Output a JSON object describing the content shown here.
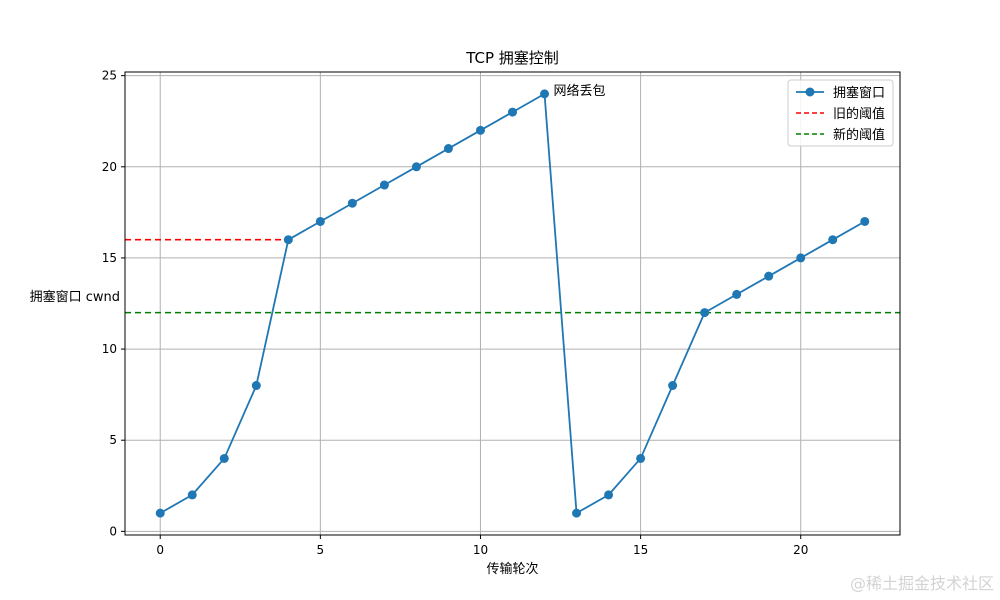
{
  "chart_data": {
    "type": "line",
    "title": "TCP 拥塞控制",
    "xlabel": "传输轮次",
    "ylabel": "拥塞窗口 cwnd",
    "xlim": [
      -1.1,
      23.1
    ],
    "ylim": [
      -0.2,
      25.2
    ],
    "x_ticks": [
      0,
      5,
      10,
      15,
      20
    ],
    "y_ticks": [
      0,
      5,
      10,
      15,
      20,
      25
    ],
    "grid": true,
    "legend_position": "top-right",
    "series": [
      {
        "name": "拥塞窗口",
        "style": "line-marker",
        "color": "#1f77b4",
        "x": [
          0,
          1,
          2,
          3,
          4,
          5,
          6,
          7,
          8,
          9,
          10,
          11,
          12,
          13,
          14,
          15,
          16,
          17,
          18,
          19,
          20,
          21,
          22
        ],
        "y": [
          1,
          2,
          4,
          8,
          16,
          17,
          18,
          19,
          20,
          21,
          22,
          23,
          24,
          1,
          2,
          4,
          8,
          12,
          13,
          14,
          15,
          16,
          17
        ]
      }
    ],
    "reference_lines": [
      {
        "name": "旧的阈值",
        "color": "#ff0000",
        "style": "dashed",
        "y": 16,
        "x_range": [
          -1.1,
          4
        ]
      },
      {
        "name": "新的阈值",
        "color": "#008000",
        "style": "dashed",
        "y": 12,
        "x_range": [
          -1.1,
          23.1
        ]
      }
    ],
    "annotations": [
      {
        "text": "网络丢包",
        "x": 12,
        "y": 24
      }
    ]
  },
  "watermark": "@稀土掘金技术社区"
}
